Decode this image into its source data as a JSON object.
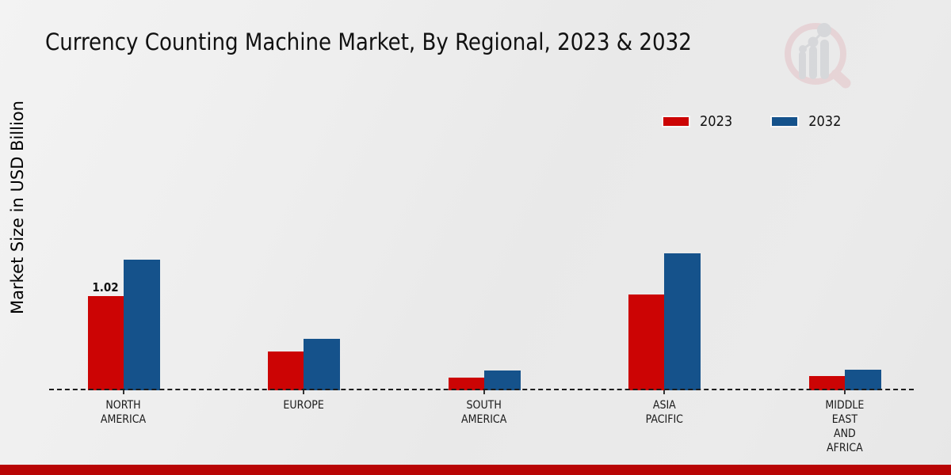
{
  "title": "Currency Counting Machine Market, By Regional, 2023 & 2032",
  "y_axis_label": "Market Size in USD Billion",
  "legend": {
    "items": [
      {
        "label": "2023",
        "color": "#cc0404"
      },
      {
        "label": "2032",
        "color": "#15528b"
      }
    ]
  },
  "footer_bar_color": "#b80505",
  "watermark_icon": "magnifier-bar-chart-logo",
  "chart_data": {
    "type": "bar",
    "title": "Currency Counting Machine Market, By Regional, 2023 & 2032",
    "xlabel": "",
    "ylabel": "Market Size in USD Billion",
    "ylim": [
      0,
      1.6
    ],
    "grid": false,
    "legend_position": "top-right",
    "baseline_style": "dashed",
    "categories": [
      "NORTH AMERICA",
      "EUROPE",
      "SOUTH AMERICA",
      "ASIA PACIFIC",
      "MIDDLE EAST AND AFRICA"
    ],
    "category_label_lines": [
      [
        "NORTH",
        "AMERICA"
      ],
      [
        "EUROPE"
      ],
      [
        "SOUTH",
        "AMERICA"
      ],
      [
        "ASIA",
        "PACIFIC"
      ],
      [
        "MIDDLE",
        "EAST",
        "AND",
        "AFRICA"
      ]
    ],
    "series": [
      {
        "name": "2023",
        "color": "#cc0404",
        "values": [
          1.02,
          0.42,
          0.14,
          1.04,
          0.15
        ]
      },
      {
        "name": "2032",
        "color": "#15528b",
        "values": [
          1.41,
          0.56,
          0.21,
          1.48,
          0.22
        ]
      }
    ],
    "data_labels": [
      {
        "series": "2023",
        "category": "NORTH AMERICA",
        "text": "1.02"
      }
    ]
  }
}
